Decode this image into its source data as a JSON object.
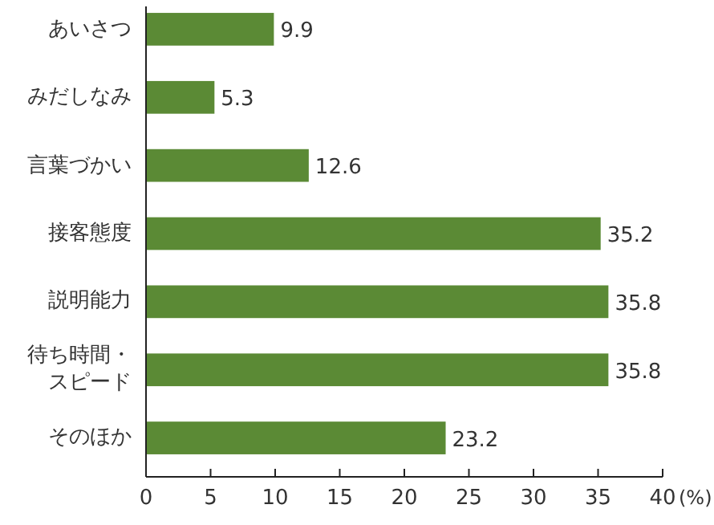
{
  "chart_data": {
    "type": "bar",
    "orientation": "horizontal",
    "xlabel": "(%)",
    "categories": [
      "あいさつ",
      "みだしなみ",
      "言葉づかい",
      "接客態度",
      "説明能力",
      "待ち時間・スピード",
      "そのほか"
    ],
    "values": [
      9.9,
      5.3,
      12.6,
      35.2,
      35.8,
      35.8,
      23.2
    ],
    "color": "#5b8a35",
    "xlim": [
      0,
      40
    ],
    "xticks": [
      0,
      5,
      10,
      15,
      20,
      25,
      30,
      35,
      40
    ],
    "data_labels": true,
    "grid": false
  }
}
